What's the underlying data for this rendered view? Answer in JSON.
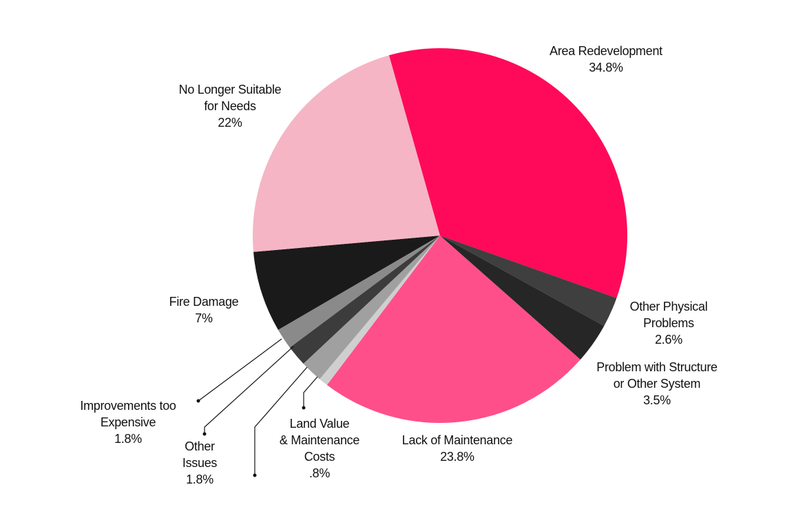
{
  "chart_data": {
    "type": "pie",
    "title": "",
    "start_angle_deg": 254.2,
    "direction": "clockwise",
    "center": [
      639,
      342
    ],
    "radius": 272,
    "slices": [
      {
        "key": "area",
        "label": "Area Redevelopment",
        "value": 34.8,
        "value_label": "34.8%",
        "color": "#ff0a5a"
      },
      {
        "key": "otherphys",
        "label": "Other Physical Problems",
        "value": 2.6,
        "value_label": "2.6%",
        "color": "#3f3f3f"
      },
      {
        "key": "structure",
        "label": "Problem with Structure or Other System",
        "value": 3.5,
        "value_label": "3.5%",
        "color": "#262626"
      },
      {
        "key": "lack",
        "label": "Lack of Maintenance",
        "value": 23.8,
        "value_label": "23.8%",
        "color": "#ff4f8a"
      },
      {
        "key": "land",
        "label": "Land Value & Maintenance Costs",
        "value": 0.8,
        "value_label": ".8%",
        "color": "#cfcfcf"
      },
      {
        "key": "unlabeled",
        "label": "",
        "value": 1.9,
        "value_label": "",
        "color": "#a0a0a0"
      },
      {
        "key": "otherissues",
        "label": "Other Issues",
        "value": 1.8,
        "value_label": "1.8%",
        "color": "#3c3c3c"
      },
      {
        "key": "improve",
        "label": "Improvements too Expensive",
        "value": 1.8,
        "value_label": "1.8%",
        "color": "#8a8a8a"
      },
      {
        "key": "fire",
        "label": "Fire Damage",
        "value": 7,
        "value_label": "7%",
        "color": "#1a1a1a"
      },
      {
        "key": "nolonger",
        "label": "No Longer Suitable for Needs",
        "value": 22,
        "value_label": "22%",
        "color": "#f5b5c5"
      }
    ],
    "legend": "none (direct labels)"
  },
  "labels": {
    "area": {
      "lines": [
        "Area Redevelopment",
        "34.8%"
      ]
    },
    "nolonger": {
      "lines": [
        "No Longer Suitable",
        "for Needs",
        "22%"
      ]
    },
    "fire": {
      "lines": [
        "Fire Damage",
        "7%"
      ]
    },
    "otherphys": {
      "lines": [
        "Other Physical",
        "Problems",
        "2.6%"
      ]
    },
    "structure": {
      "lines": [
        "Problem with Structure",
        "or Other System",
        "3.5%"
      ]
    },
    "improve": {
      "lines": [
        "Improvements too",
        "Expensive",
        "1.8%"
      ]
    },
    "otherissues": {
      "lines": [
        "Other",
        "Issues",
        "1.8%"
      ]
    },
    "land": {
      "lines": [
        "Land Value",
        "& Maintenance",
        "Costs",
        ".8%"
      ]
    },
    "lack": {
      "lines": [
        "Lack of Maintenance",
        "23.8%"
      ]
    }
  }
}
